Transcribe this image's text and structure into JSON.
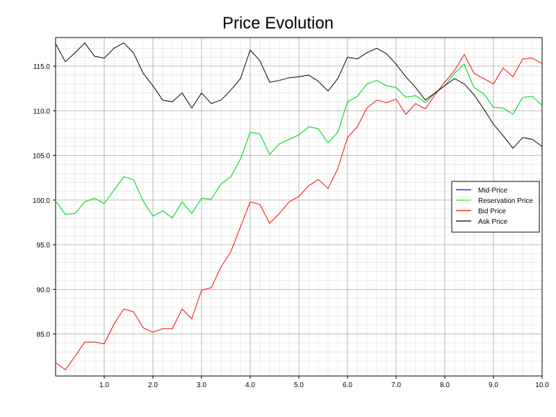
{
  "chart_data": {
    "type": "line",
    "title": "Price Evolution",
    "xlabel": "",
    "ylabel": "",
    "xlim": [
      0.0,
      10.0
    ],
    "ylim": [
      80.3,
      118.2
    ],
    "x_ticks": [
      "1.0",
      "2.0",
      "3.0",
      "4.0",
      "5.0",
      "6.0",
      "7.0",
      "8.0",
      "9.0",
      "10.0"
    ],
    "y_ticks": [
      "85.0",
      "90.0",
      "95.0",
      "100.0",
      "105.0",
      "110.0",
      "115.0"
    ],
    "grid": true,
    "legend_position": "right",
    "x": [
      0.0,
      0.2,
      0.4,
      0.6,
      0.8,
      1.0,
      1.2,
      1.4,
      1.6,
      1.8,
      2.0,
      2.2,
      2.4,
      2.6,
      2.8,
      3.0,
      3.2,
      3.4,
      3.6,
      3.8,
      4.0,
      4.2,
      4.4,
      4.6,
      4.8,
      5.0,
      5.2,
      5.4,
      5.6,
      5.8,
      6.0,
      6.2,
      6.4,
      6.6,
      6.8,
      7.0,
      7.2,
      7.4,
      7.6,
      7.8,
      8.0,
      8.2,
      8.4,
      8.6,
      8.8,
      9.0,
      9.2,
      9.4,
      9.6,
      9.8,
      10.0
    ],
    "series": [
      {
        "name": "Mid-Price",
        "color": "#0000ff",
        "values": [
          99.9,
          98.4,
          98.5,
          99.8,
          100.2,
          99.6,
          101.1,
          102.6,
          102.3,
          99.9,
          98.2,
          98.8,
          98.0,
          99.8,
          98.5,
          100.2,
          100.1,
          101.8,
          102.6,
          104.6,
          107.6,
          107.4,
          105.1,
          106.3,
          106.8,
          107.3,
          108.2,
          108.0,
          106.4,
          107.6,
          111.0,
          111.6,
          113.0,
          113.4,
          112.8,
          112.6,
          111.5,
          111.7,
          110.9,
          112.0,
          112.8,
          114.2,
          115.2,
          112.6,
          111.9,
          110.4,
          110.3,
          109.6,
          111.5,
          111.6,
          110.6
        ]
      },
      {
        "name": "Reservation Price",
        "color": "#00ff00",
        "values": [
          99.9,
          98.4,
          98.5,
          99.8,
          100.2,
          99.6,
          101.1,
          102.6,
          102.3,
          99.9,
          98.2,
          98.8,
          98.0,
          99.8,
          98.5,
          100.2,
          100.1,
          101.8,
          102.6,
          104.6,
          107.6,
          107.4,
          105.1,
          106.3,
          106.8,
          107.3,
          108.2,
          108.0,
          106.4,
          107.6,
          111.0,
          111.6,
          113.0,
          113.4,
          112.8,
          112.6,
          111.5,
          111.7,
          110.9,
          112.0,
          112.8,
          114.2,
          115.2,
          112.6,
          111.9,
          110.4,
          110.3,
          109.6,
          111.5,
          111.6,
          110.6
        ]
      },
      {
        "name": "Bid Price",
        "color": "#ff0000",
        "values": [
          81.8,
          81.0,
          82.5,
          84.1,
          84.1,
          83.9,
          86.1,
          87.8,
          87.5,
          85.7,
          85.2,
          85.6,
          85.6,
          87.8,
          86.7,
          89.9,
          90.2,
          92.5,
          94.2,
          97.0,
          99.8,
          99.5,
          97.4,
          98.5,
          99.8,
          100.4,
          101.6,
          102.3,
          101.3,
          103.5,
          107.0,
          108.2,
          110.3,
          111.2,
          110.9,
          111.3,
          109.6,
          110.8,
          110.2,
          111.8,
          113.2,
          114.5,
          116.3,
          114.2,
          113.6,
          113.0,
          114.8,
          113.8,
          115.8,
          115.9,
          115.3
        ]
      },
      {
        "name": "Ask Price",
        "color": "#000000",
        "values": [
          117.5,
          115.5,
          116.5,
          117.6,
          116.1,
          115.9,
          117.0,
          117.6,
          116.5,
          114.2,
          112.8,
          111.2,
          111.0,
          112.0,
          110.3,
          112.0,
          110.8,
          111.2,
          112.3,
          113.6,
          116.8,
          115.6,
          113.2,
          113.4,
          113.7,
          113.8,
          114.0,
          113.3,
          112.2,
          113.6,
          116.0,
          115.8,
          116.5,
          117.0,
          116.4,
          115.2,
          113.8,
          112.6,
          111.2,
          112.0,
          112.8,
          113.6,
          113.0,
          111.8,
          110.2,
          108.5,
          107.2,
          105.8,
          107.0,
          106.8,
          106.0
        ]
      }
    ]
  }
}
